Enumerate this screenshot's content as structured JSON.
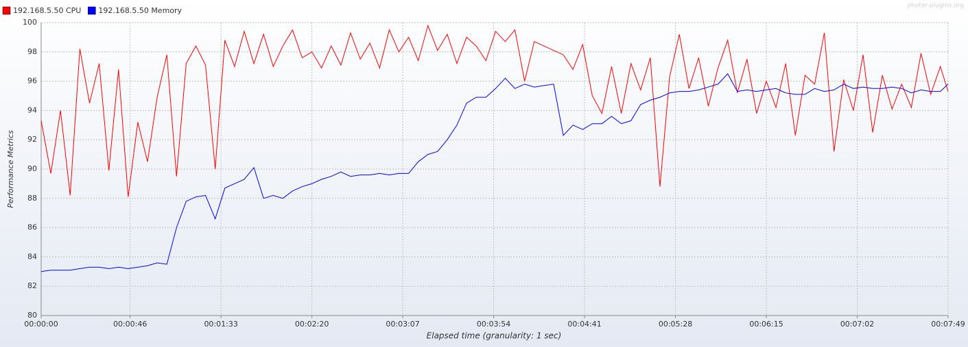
{
  "chart_data": {
    "type": "line",
    "watermark": "jmeter-plugins.org",
    "xlabel": "Elapsed time (granularity: 1 sec)",
    "ylabel": "Performance Metrics",
    "grid": true,
    "legend": "top-left",
    "x": [
      0,
      5,
      10,
      15,
      20,
      25,
      30,
      35,
      40,
      45,
      50,
      55,
      60,
      65,
      70,
      75,
      80,
      85,
      90,
      95,
      100,
      105,
      110,
      115,
      120,
      125,
      130,
      135,
      140,
      145,
      150,
      155,
      160,
      165,
      170,
      175,
      180,
      185,
      190,
      195,
      200,
      205,
      210,
      215,
      220,
      225,
      230,
      235,
      240,
      245,
      250,
      255,
      260,
      265,
      270,
      275,
      280,
      285,
      290,
      295,
      300,
      305,
      310,
      315,
      320,
      325,
      330,
      335,
      340,
      345,
      350,
      355,
      360,
      365,
      370,
      375,
      380,
      385,
      390,
      395,
      400,
      405,
      410,
      415,
      420,
      425,
      430,
      435,
      440,
      445,
      450,
      455,
      460,
      465,
      469
    ],
    "series": [
      {
        "name": "192.168.5.50 CPU",
        "color": "#ff0000",
        "values": [
          93.3,
          89.7,
          94.0,
          88.2,
          98.2,
          94.5,
          97.2,
          89.9,
          96.8,
          88.1,
          93.2,
          90.5,
          94.9,
          97.8,
          89.5,
          97.2,
          98.4,
          97.1,
          90.0,
          98.8,
          97.0,
          99.4,
          97.2,
          99.2,
          97.0,
          98.4,
          99.5,
          97.6,
          98.0,
          96.9,
          98.4,
          97.1,
          99.3,
          97.5,
          98.6,
          96.9,
          99.5,
          98.0,
          99.0,
          97.4,
          99.8,
          98.1,
          99.2,
          97.2,
          99.0,
          98.4,
          97.4,
          99.4,
          98.7,
          99.5,
          96.0,
          98.7,
          98.4,
          98.1,
          97.8,
          96.8,
          98.5,
          95.0,
          93.8,
          97.0,
          93.8,
          97.2,
          95.4,
          97.6,
          88.8,
          96.3,
          99.2,
          95.5,
          97.6,
          94.3,
          96.9,
          98.8,
          95.2,
          97.5,
          93.8,
          96.0,
          94.2,
          97.2,
          92.3,
          96.4,
          95.8,
          99.3,
          91.2,
          96.1,
          94.0,
          97.8,
          92.5,
          96.4,
          94.1,
          95.8,
          94.2,
          97.9,
          95.1,
          97.0,
          95.3
        ]
      },
      {
        "name": "192.168.5.50 Memory",
        "color": "#0000ff",
        "values": [
          83.0,
          83.1,
          83.1,
          83.1,
          83.2,
          83.3,
          83.3,
          83.2,
          83.3,
          83.2,
          83.3,
          83.4,
          83.6,
          83.5,
          86.0,
          87.8,
          88.1,
          88.2,
          86.6,
          88.7,
          89.0,
          89.3,
          90.1,
          88.0,
          88.2,
          88.0,
          88.5,
          88.8,
          89.0,
          89.3,
          89.5,
          89.8,
          89.5,
          89.6,
          89.6,
          89.7,
          89.6,
          89.7,
          89.7,
          90.5,
          91.0,
          91.2,
          92.0,
          93.0,
          94.5,
          94.9,
          94.9,
          95.5,
          96.2,
          95.5,
          95.8,
          95.6,
          95.7,
          95.8,
          92.3,
          93.0,
          92.7,
          93.1,
          93.1,
          93.6,
          93.1,
          93.3,
          94.4,
          94.7,
          94.9,
          95.2,
          95.3,
          95.3,
          95.4,
          95.6,
          95.8,
          96.5,
          95.3,
          95.4,
          95.3,
          95.4,
          95.5,
          95.2,
          95.1,
          95.1,
          95.5,
          95.3,
          95.4,
          95.8,
          95.5,
          95.6,
          95.5,
          95.5,
          95.6,
          95.5,
          95.2,
          95.4,
          95.3,
          95.3,
          95.8
        ]
      }
    ],
    "xlim": [
      0,
      469
    ],
    "xticks": [
      {
        "value": 0,
        "label": "00:00:00"
      },
      {
        "value": 46,
        "label": "00:00:46"
      },
      {
        "value": 93,
        "label": "00:01:33"
      },
      {
        "value": 140,
        "label": "00:02:20"
      },
      {
        "value": 187,
        "label": "00:03:07"
      },
      {
        "value": 234,
        "label": "00:03:54"
      },
      {
        "value": 281,
        "label": "00:04:41"
      },
      {
        "value": 328,
        "label": "00:05:28"
      },
      {
        "value": 375,
        "label": "00:06:15"
      },
      {
        "value": 422,
        "label": "00:07:02"
      },
      {
        "value": 469,
        "label": "00:07:49"
      }
    ],
    "ylim": [
      80,
      100
    ],
    "yticks": [
      80,
      82,
      84,
      86,
      88,
      90,
      92,
      94,
      96,
      98,
      100
    ]
  }
}
